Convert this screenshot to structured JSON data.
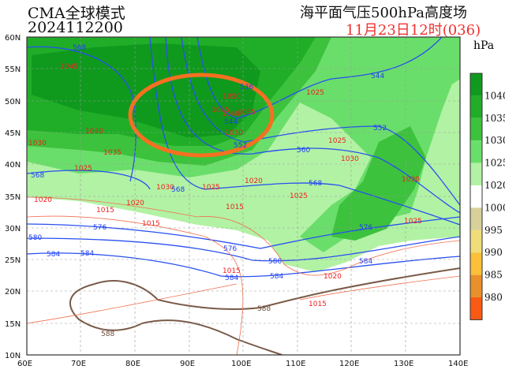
{
  "header": {
    "model": "CMA全球模式",
    "run": "2024112200",
    "product": "海平面气压500hPa高度场",
    "valid": "11月23日12时(036)"
  },
  "map": {
    "lon_ticks": [
      "60E",
      "70E",
      "80E",
      "90E",
      "100E",
      "110E",
      "120E",
      "130E",
      "140E"
    ],
    "lat_ticks": [
      "60N",
      "55N",
      "50N",
      "45N",
      "40N",
      "35N",
      "30N",
      "25N",
      "20N",
      "15N",
      "10N"
    ],
    "height_labels": [
      "568",
      "536",
      "544",
      "552",
      "568",
      "568",
      "544",
      "552",
      "560",
      "568",
      "576",
      "580",
      "584",
      "584",
      "576",
      "580",
      "584",
      "584",
      "576",
      "584"
    ],
    "brown_labels": [
      "588",
      "588"
    ],
    "pressure_labels": [
      "1045",
      "1040",
      "1030",
      "1035",
      "1025",
      "1030",
      "1025",
      "1020",
      "1050",
      "1045",
      "1040",
      "1035",
      "1030",
      "1025",
      "1025",
      "1030",
      "1030",
      "1025",
      "1025",
      "1020",
      "1020",
      "1015",
      "1015",
      "1015",
      "1015",
      "1020",
      "1015"
    ],
    "highlight": "orange-ellipse"
  },
  "colorbar": {
    "unit": "hPa",
    "labels": [
      "1040",
      "1035",
      "1030",
      "1025",
      "1020",
      "1000",
      "995",
      "990",
      "985",
      "980"
    ],
    "colors": [
      "#0f9a1e",
      "#20ad28",
      "#3cc23c",
      "#6ade6a",
      "#b2f2a4",
      "#ffffff",
      "#d8d09a",
      "#f0dc78",
      "#fbbf3a",
      "#e8902a",
      "#fb5a14"
    ]
  }
}
